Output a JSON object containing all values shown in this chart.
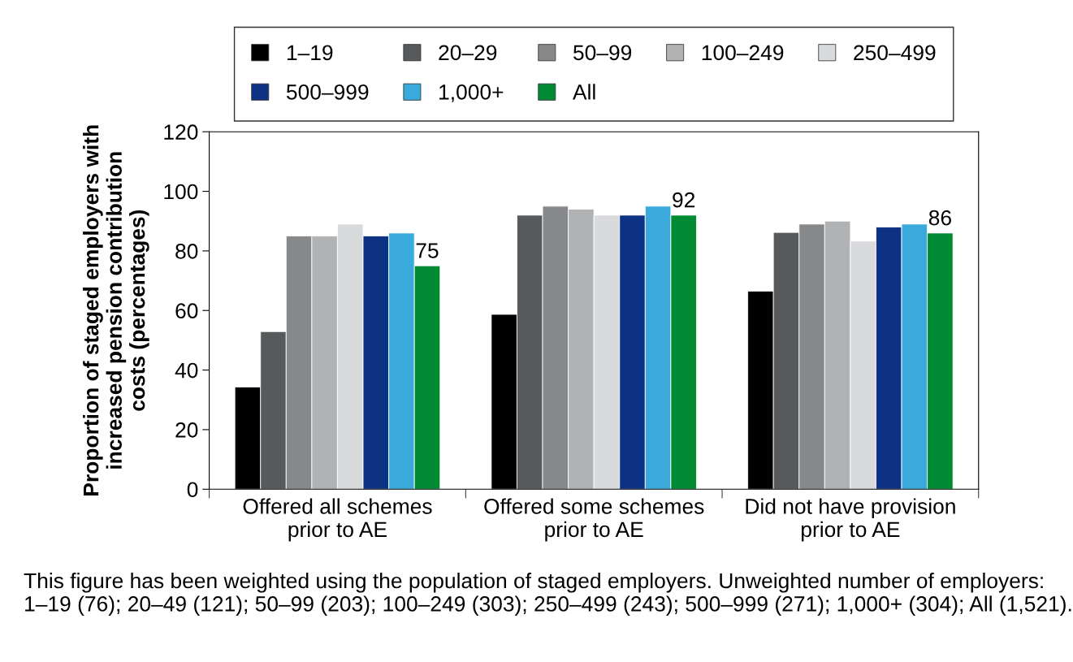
{
  "chart_data": {
    "type": "bar",
    "ylabel": "Proportion of staged employers with\nincreased pension contribution\ncosts (percentages)",
    "categories": [
      "Offered all schemes\nprior to AE",
      "Offered some schemes\nprior to AE",
      "Did not have provision\nprior to AE"
    ],
    "series": [
      {
        "name": "1–19",
        "color": "#000000",
        "values": [
          34.3,
          58.7,
          66.5
        ]
      },
      {
        "name": "20–29",
        "color": "#58595b",
        "values": [
          52.9,
          92,
          86.2
        ]
      },
      {
        "name": "50–99",
        "color": "#87888a",
        "values": [
          85,
          95,
          89
        ]
      },
      {
        "name": "100–249",
        "color": "#b1b2b4",
        "values": [
          85,
          94,
          90
        ]
      },
      {
        "name": "250–499",
        "color": "#d9dadc",
        "values": [
          89,
          92,
          83.3
        ]
      },
      {
        "name": "500–999",
        "color": "#0d3183",
        "values": [
          85,
          92,
          88
        ]
      },
      {
        "name": "1,000+",
        "color": "#3aa9dc",
        "values": [
          86,
          95,
          89
        ]
      },
      {
        "name": "All",
        "color": "#008a33",
        "values": [
          75,
          92,
          86
        ],
        "value_labels": [
          "75",
          "92",
          "86"
        ]
      }
    ],
    "ylim": [
      0,
      120
    ],
    "yticks": [
      0,
      20,
      40,
      60,
      80,
      100,
      120
    ],
    "grid": false,
    "legend": "top",
    "annotations": [
      "This figure has been weighted using the population of staged employers. Unweighted number of employers: 1–19 (76); 20–49 (121); 50–99 (203); 100–249 (303); 250–499 (243); 500–999 (271); 1,000+ (304); All (1,521)."
    ]
  }
}
